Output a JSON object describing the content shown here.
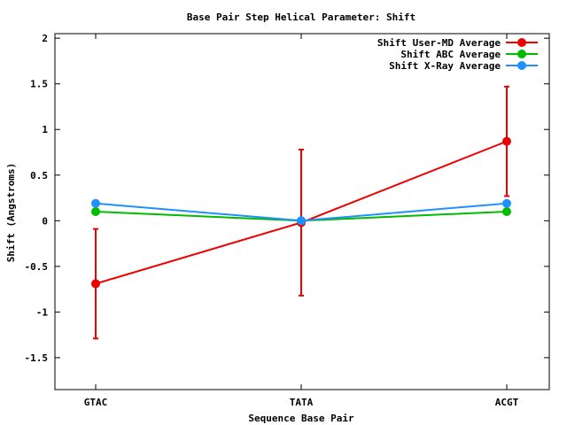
{
  "chart_data": {
    "type": "line",
    "title": "Base Pair Step Helical Parameter: Shift",
    "xlabel": "Sequence Base Pair",
    "ylabel": "Shift (Angstroms)",
    "categories": [
      "GTAC",
      "TATA",
      "ACGT"
    ],
    "ylim": [
      -1.85,
      2.05
    ],
    "yticks": [
      2,
      1.5,
      1,
      0.5,
      0,
      -0.5,
      -1,
      -1.5
    ],
    "ytick_labels": [
      "2",
      "1.5",
      "1",
      "0.5",
      "0",
      "-0.5",
      "-1",
      "-1.5"
    ],
    "grid": false,
    "legend_position": "top-right",
    "series": [
      {
        "name": "Shift User-MD Average",
        "color": "#ee0000",
        "values": [
          -0.69,
          -0.02,
          0.87
        ],
        "error": [
          0.6,
          0.8,
          0.6
        ]
      },
      {
        "name": "Shift ABC Average",
        "color": "#00bb00",
        "values": [
          0.1,
          0.0,
          0.1
        ]
      },
      {
        "name": "Shift X-Ray Average",
        "color": "#1e90ff",
        "values": [
          0.19,
          0.0,
          0.19
        ]
      }
    ]
  }
}
